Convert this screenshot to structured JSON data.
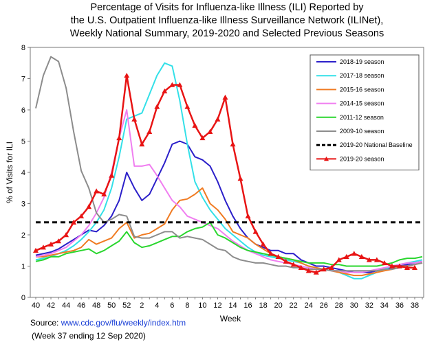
{
  "chart_data": {
    "type": "line",
    "title": [
      "Percentage of Visits for Influenza-like Illness (ILI) Reported by",
      "the U.S. Outpatient Influenza-like Illness Surveillance Network (ILINet),",
      "Weekly National Summary, 2019-2020 and Selected Previous Seasons"
    ],
    "xlabel": "Week",
    "ylabel": "% of Visits for ILI",
    "ylim": [
      0,
      8
    ],
    "yticks": [
      "0",
      "1",
      "2",
      "3",
      "4",
      "5",
      "6",
      "7",
      "8"
    ],
    "categories": [
      "40",
      "41",
      "42",
      "43",
      "44",
      "45",
      "46",
      "47",
      "48",
      "49",
      "50",
      "51",
      "52",
      "1",
      "2",
      "3",
      "4",
      "5",
      "6",
      "7",
      "8",
      "9",
      "10",
      "11",
      "12",
      "13",
      "14",
      "15",
      "16",
      "17",
      "18",
      "19",
      "20",
      "21",
      "22",
      "23",
      "24",
      "25",
      "26",
      "27",
      "28",
      "29",
      "30",
      "31",
      "32",
      "33",
      "34",
      "35",
      "36",
      "37",
      "38",
      "39"
    ],
    "xticks": [
      "40",
      "42",
      "44",
      "46",
      "48",
      "50",
      "52",
      "2",
      "4",
      "6",
      "8",
      "10",
      "12",
      "14",
      "16",
      "18",
      "20",
      "22",
      "24",
      "26",
      "28",
      "30",
      "32",
      "34",
      "36",
      "38"
    ],
    "legend_position": "top-right",
    "series": [
      {
        "name": "2018-19 season",
        "color": "#2b1fc9",
        "style": "solid",
        "values": [
          1.35,
          1.4,
          1.45,
          1.55,
          1.7,
          1.85,
          2.0,
          2.15,
          2.1,
          2.3,
          2.6,
          3.1,
          4.0,
          3.5,
          3.1,
          3.3,
          3.8,
          4.3,
          4.9,
          5.0,
          4.9,
          4.5,
          4.4,
          4.2,
          3.7,
          3.1,
          2.6,
          2.2,
          1.9,
          1.7,
          1.6,
          1.5,
          1.5,
          1.4,
          1.4,
          1.2,
          1.1,
          1.0,
          1.0,
          0.95,
          0.9,
          0.85,
          0.8,
          0.8,
          0.8,
          0.85,
          0.9,
          0.95,
          1.0,
          1.05,
          1.1,
          1.15
        ]
      },
      {
        "name": "2017-18 season",
        "color": "#33e0e8",
        "style": "solid",
        "values": [
          1.2,
          1.25,
          1.3,
          1.4,
          1.5,
          1.65,
          1.85,
          2.1,
          2.4,
          2.8,
          3.5,
          4.5,
          5.7,
          5.8,
          5.9,
          6.5,
          7.1,
          7.5,
          7.4,
          6.3,
          4.9,
          3.7,
          3.2,
          2.8,
          2.5,
          2.2,
          2.0,
          1.8,
          1.6,
          1.45,
          1.35,
          1.3,
          1.25,
          1.2,
          1.15,
          1.1,
          1.0,
          0.95,
          0.9,
          0.85,
          0.8,
          0.7,
          0.6,
          0.6,
          0.7,
          0.8,
          0.9,
          1.0,
          1.05,
          1.1,
          1.15,
          1.2
        ]
      },
      {
        "name": "2015-16 season",
        "color": "#f07b22",
        "style": "solid",
        "values": [
          1.3,
          1.3,
          1.35,
          1.4,
          1.45,
          1.5,
          1.6,
          1.85,
          1.7,
          1.8,
          1.9,
          2.2,
          2.4,
          1.9,
          2.0,
          2.05,
          2.2,
          2.35,
          2.8,
          3.1,
          3.15,
          3.3,
          3.5,
          3.0,
          2.8,
          2.5,
          2.1,
          2.0,
          1.9,
          1.7,
          1.55,
          1.4,
          1.3,
          1.25,
          1.2,
          1.1,
          1.0,
          0.95,
          0.9,
          0.85,
          0.8,
          0.75,
          0.7,
          0.7,
          0.75,
          0.8,
          0.85,
          0.9,
          1.0,
          1.0,
          1.05,
          1.1
        ]
      },
      {
        "name": "2014-15 season",
        "color": "#f07ef0",
        "style": "solid",
        "values": [
          1.3,
          1.35,
          1.4,
          1.5,
          1.6,
          1.8,
          2.0,
          2.3,
          2.7,
          3.2,
          4.0,
          5.1,
          6.0,
          4.2,
          4.2,
          4.25,
          3.9,
          3.5,
          3.1,
          2.9,
          2.6,
          2.5,
          2.4,
          2.3,
          2.2,
          2.0,
          1.8,
          1.65,
          1.5,
          1.4,
          1.3,
          1.2,
          1.15,
          1.1,
          1.05,
          1.0,
          0.95,
          0.9,
          0.9,
          0.85,
          0.85,
          0.8,
          0.8,
          0.8,
          0.85,
          0.9,
          0.95,
          1.0,
          1.05,
          1.1,
          1.1,
          1.15
        ]
      },
      {
        "name": "2011-12 season",
        "color": "#29d62e",
        "style": "solid",
        "values": [
          1.15,
          1.2,
          1.3,
          1.3,
          1.4,
          1.45,
          1.5,
          1.55,
          1.4,
          1.5,
          1.65,
          1.8,
          2.1,
          1.75,
          1.6,
          1.65,
          1.75,
          1.85,
          1.95,
          1.95,
          2.1,
          2.2,
          2.25,
          2.4,
          2.0,
          1.9,
          1.75,
          1.6,
          1.5,
          1.45,
          1.4,
          1.35,
          1.3,
          1.25,
          1.2,
          1.15,
          1.1,
          1.1,
          1.1,
          1.05,
          1.05,
          1.0,
          1.0,
          1.0,
          1.0,
          1.0,
          1.05,
          1.1,
          1.2,
          1.25,
          1.25,
          1.3
        ]
      },
      {
        "name": "2009-10 season",
        "color": "#8c8c8c",
        "style": "solid",
        "values": [
          6.05,
          7.1,
          7.7,
          7.55,
          6.7,
          5.3,
          4.05,
          3.5,
          2.7,
          2.4,
          2.5,
          2.65,
          2.6,
          1.95,
          1.9,
          1.9,
          2.0,
          2.1,
          2.1,
          1.9,
          1.95,
          1.9,
          1.85,
          1.7,
          1.55,
          1.5,
          1.3,
          1.2,
          1.15,
          1.1,
          1.1,
          1.05,
          1.0,
          1.0,
          0.95,
          0.95,
          0.9,
          0.9,
          0.9,
          0.85,
          0.85,
          0.85,
          0.85,
          0.85,
          0.85,
          0.85,
          0.9,
          0.9,
          0.95,
          1.0,
          1.05,
          1.1
        ]
      },
      {
        "name": "2019-20 National Baseline",
        "color": "#000000",
        "style": "dashed",
        "values": [
          2.4,
          2.4,
          2.4,
          2.4,
          2.4,
          2.4,
          2.4,
          2.4,
          2.4,
          2.4,
          2.4,
          2.4,
          2.4,
          2.4,
          2.4,
          2.4,
          2.4,
          2.4,
          2.4,
          2.4,
          2.4,
          2.4,
          2.4,
          2.4,
          2.4,
          2.4,
          2.4,
          2.4,
          2.4,
          2.4,
          2.4,
          2.4,
          2.4,
          2.4,
          2.4,
          2.4,
          2.4,
          2.4,
          2.4,
          2.4,
          2.4,
          2.4,
          2.4,
          2.4,
          2.4,
          2.4,
          2.4,
          2.4,
          2.4,
          2.4,
          2.4,
          2.4
        ]
      },
      {
        "name": "2019-20 season",
        "color": "#e81414",
        "style": "solid-markers",
        "values": [
          1.5,
          1.6,
          1.7,
          1.8,
          2.0,
          2.4,
          2.6,
          2.9,
          3.4,
          3.3,
          3.9,
          5.1,
          7.1,
          5.7,
          4.9,
          5.3,
          6.1,
          6.6,
          6.8,
          6.8,
          6.1,
          5.5,
          5.1,
          5.3,
          5.7,
          6.4,
          4.9,
          3.8,
          2.6,
          2.1,
          1.7,
          1.4,
          1.3,
          1.15,
          1.05,
          0.95,
          0.85,
          0.8,
          0.9,
          0.95,
          1.2,
          1.3,
          1.4,
          1.3,
          1.2,
          1.2,
          1.1,
          1.0,
          1.0,
          0.95,
          0.95,
          null
        ]
      }
    ]
  },
  "footer": {
    "source_label": "Source:",
    "source_link": "www.cdc.gov/flu/weekly/index.htm",
    "week_note": "(Week 37 ending 12 Sep 2020)"
  }
}
